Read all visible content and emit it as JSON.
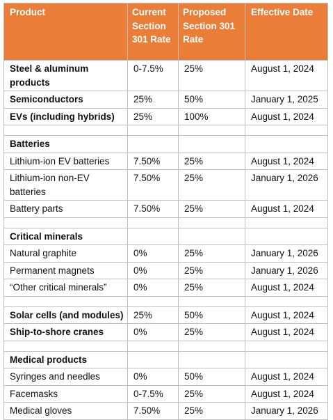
{
  "table": {
    "headers": {
      "product": "Product",
      "current": [
        "Current",
        "Section",
        "301 Rate"
      ],
      "proposed": [
        "Proposed",
        "Section 301",
        "Rate"
      ],
      "date": "Effective Date"
    },
    "rows": [
      {
        "product": "Steel & aluminum products",
        "current": "0-7.5%",
        "proposed": "25%",
        "date": "August 1, 2024",
        "bold": true
      },
      {
        "product": "Semiconductors",
        "current": "25%",
        "proposed": "50%",
        "date": "January 1, 2025",
        "bold": true
      },
      {
        "product": "EVs (including hybrids)",
        "current": "25%",
        "proposed": "100%",
        "date": "August 1, 2024",
        "bold": true
      },
      {
        "spacer": true
      },
      {
        "product": "Batteries",
        "current": "",
        "proposed": "",
        "date": "",
        "bold": true
      },
      {
        "product": "Lithium-ion EV batteries",
        "current": "7.50%",
        "proposed": "25%",
        "date": "August 1, 2024"
      },
      {
        "product": "Lithium-ion non-EV batteries",
        "current": "7.50%",
        "proposed": "25%",
        "date": "January 1, 2026"
      },
      {
        "product": "Battery parts",
        "current": "7.50%",
        "proposed": "25%",
        "date": "August 1, 2024"
      },
      {
        "spacer": true
      },
      {
        "product": "Critical minerals",
        "current": "",
        "proposed": "",
        "date": "",
        "bold": true
      },
      {
        "product": "Natural graphite",
        "current": "0%",
        "proposed": "25%",
        "date": "January 1, 2026"
      },
      {
        "product": "Permanent magnets",
        "current": "0%",
        "proposed": "25%",
        "date": "January 1, 2026"
      },
      {
        "product": "“Other critical minerals”",
        "current": "0%",
        "proposed": "25%",
        "date": "August 1, 2024"
      },
      {
        "spacer": true
      },
      {
        "product": "Solar cells (and modules)",
        "current": "25%",
        "proposed": "50%",
        "date": "August 1, 2024",
        "bold": true
      },
      {
        "product": "Ship-to-shore cranes",
        "current": "0%",
        "proposed": "25%",
        "date": "August 1, 2024",
        "bold": true
      },
      {
        "spacer": true
      },
      {
        "product": "Medical products",
        "current": "",
        "proposed": "",
        "date": "",
        "bold": true
      },
      {
        "product": "Syringes and needles",
        "current": "0%",
        "proposed": "50%",
        "date": "August 1, 2024"
      },
      {
        "product": "Facemasks",
        "current": "0-7.5%",
        "proposed": "25%",
        "date": "August 1, 2024"
      },
      {
        "product": "Medical gloves",
        "current": "7.50%",
        "proposed": "25%",
        "date": "January 1, 2026"
      }
    ],
    "colors": {
      "header_bg": "#ea7d37",
      "header_text": "#ffffff",
      "grid": "#bfbfbf"
    }
  }
}
